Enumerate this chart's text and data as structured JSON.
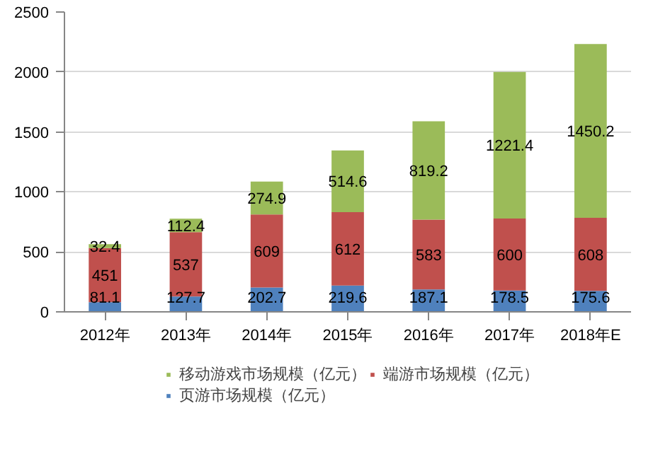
{
  "chart_data": {
    "type": "bar",
    "stacked": true,
    "categories": [
      "2012年",
      "2013年",
      "2014年",
      "2015年",
      "2016年",
      "2017年",
      "2018年E"
    ],
    "series": [
      {
        "name": "页游市场规模（亿元）",
        "color": "#4f81bd",
        "values": [
          81.1,
          127.7,
          202.7,
          219.6,
          187.1,
          178.5,
          175.6
        ]
      },
      {
        "name": "端游市场规模（亿元）",
        "color": "#c0504d",
        "values": [
          451,
          537,
          609,
          612,
          583,
          600,
          608
        ]
      },
      {
        "name": "移动游戏市场规模（亿元）",
        "color": "#9bbb59",
        "values": [
          32.4,
          112.4,
          274.9,
          514.6,
          819.2,
          1221.4,
          1450.2
        ]
      }
    ],
    "ylim": [
      0,
      2500
    ],
    "yticks": [
      0,
      500,
      1000,
      1500,
      2000,
      2500
    ],
    "grid": "y",
    "legend": "bottom",
    "data_labels": true
  }
}
